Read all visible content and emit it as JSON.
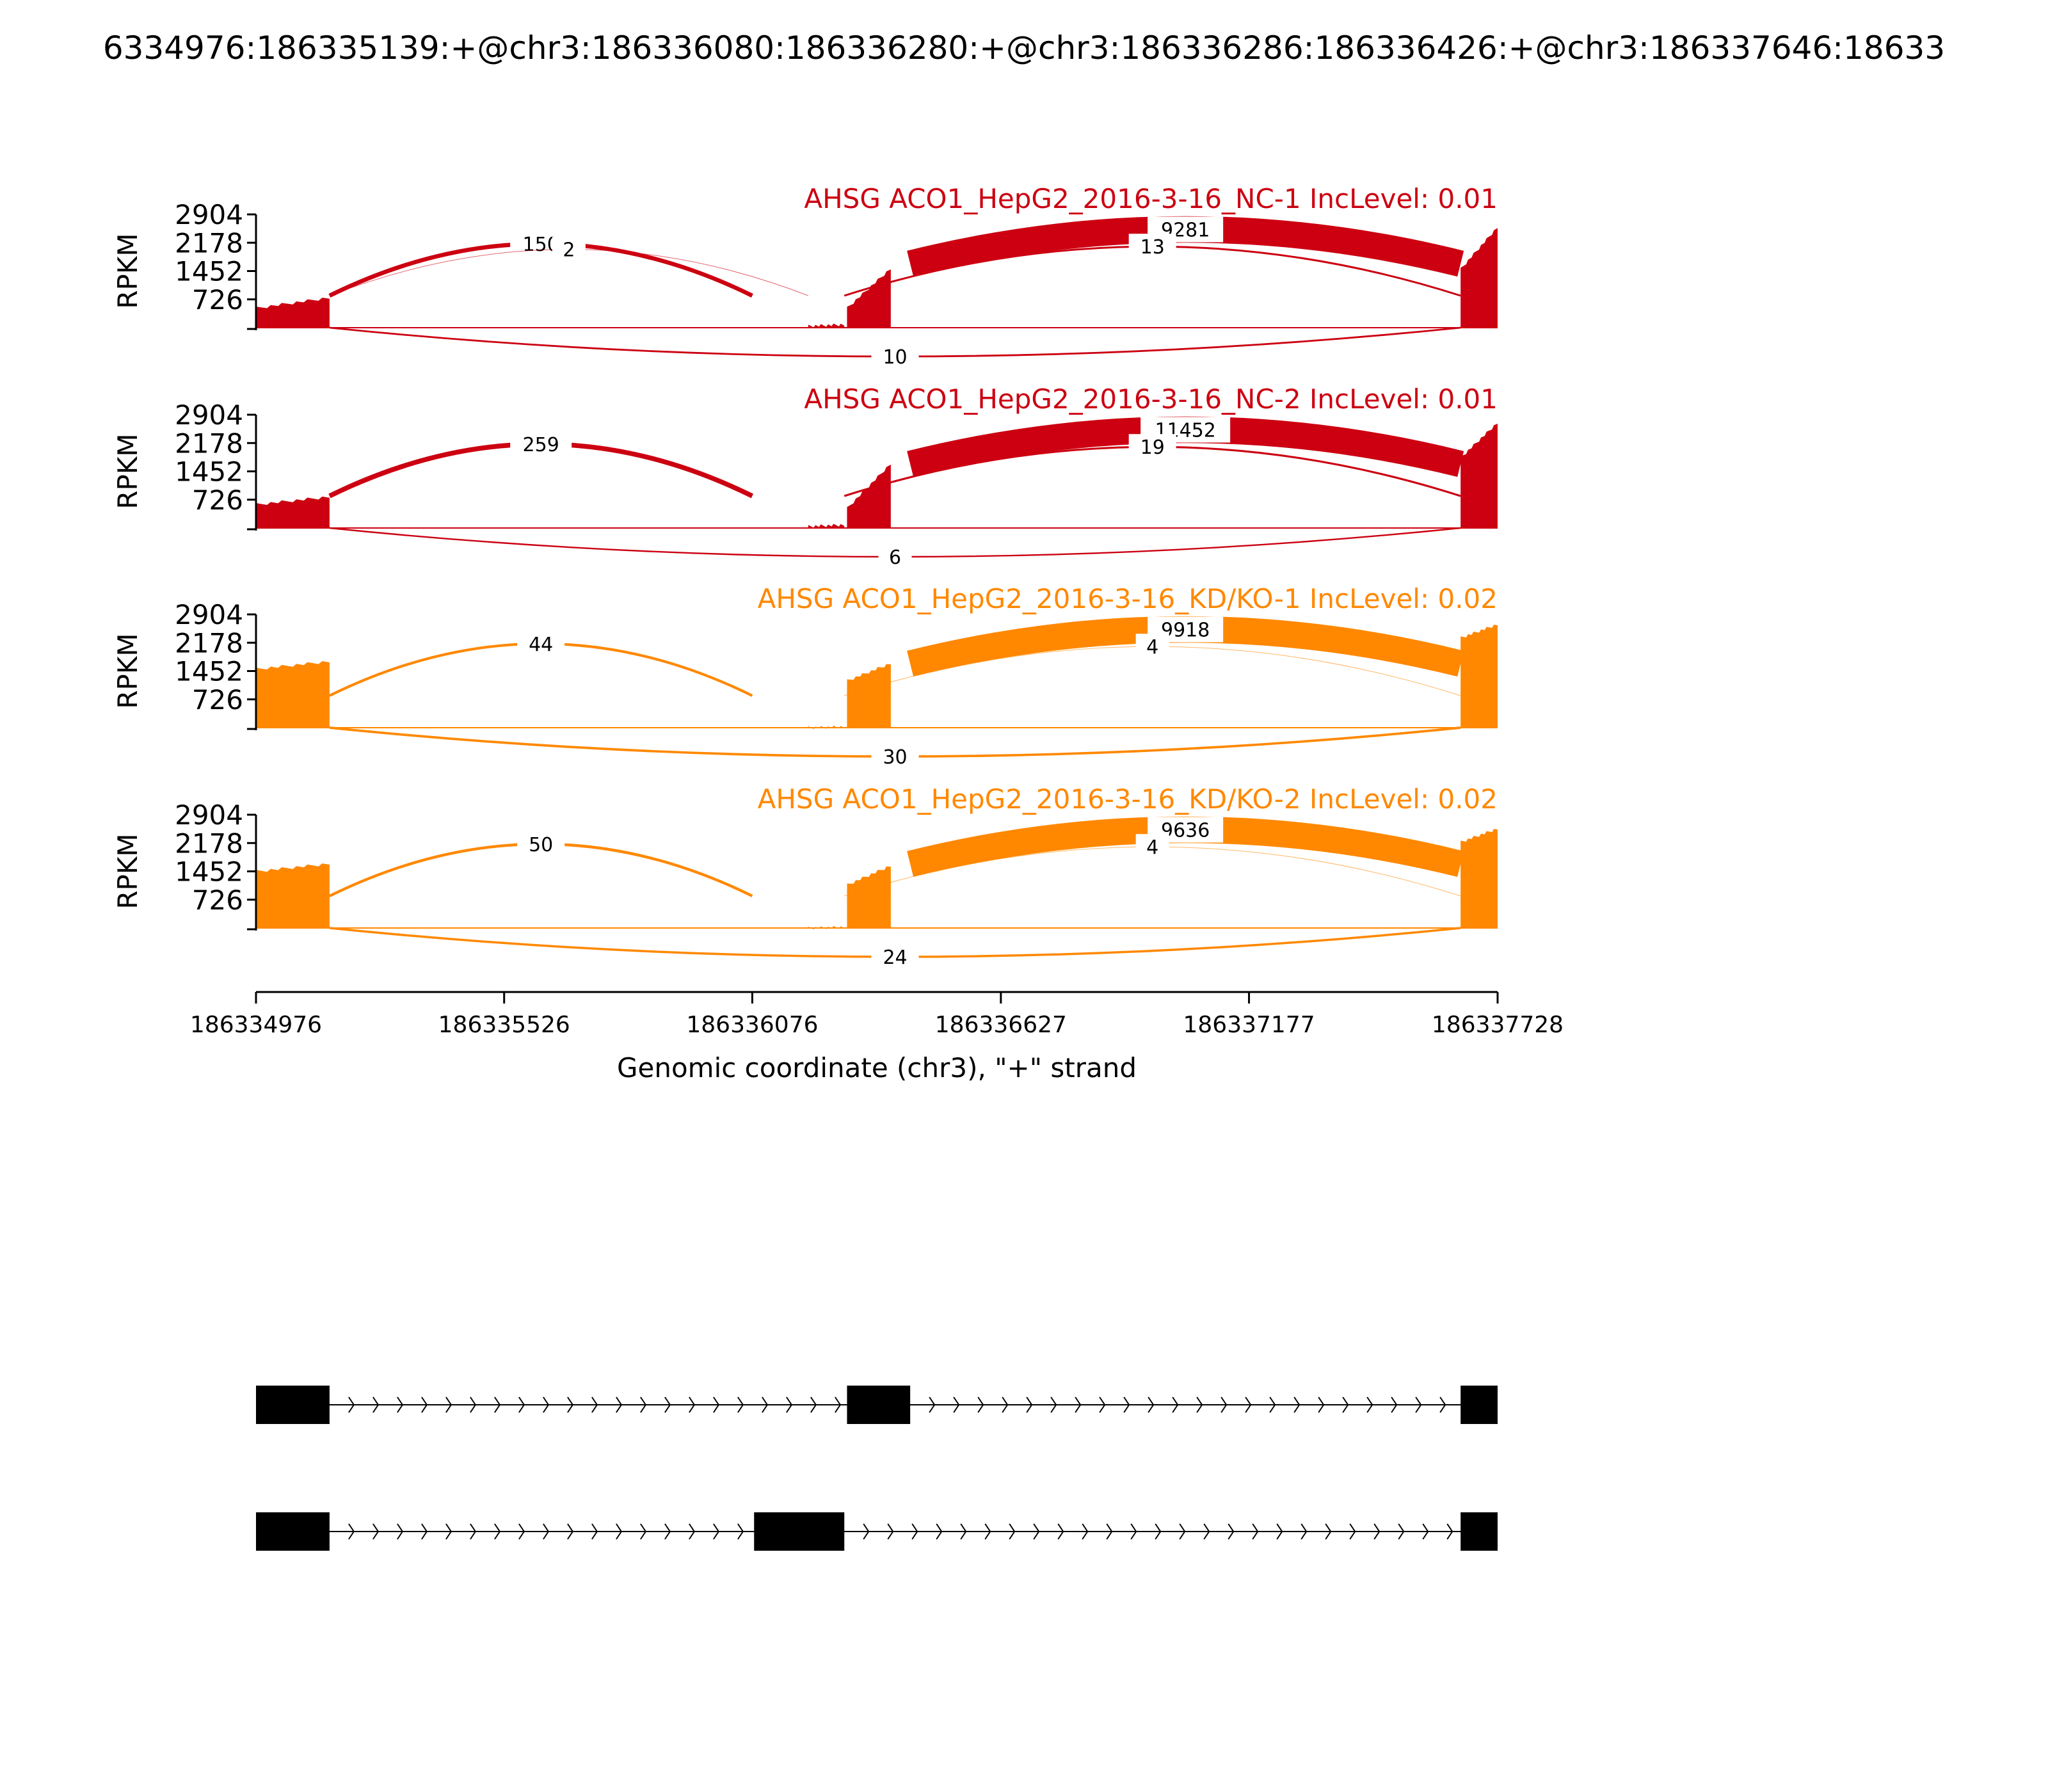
{
  "chart_data": {
    "type": "area",
    "title": "6334976:186335139:+@chr3:186336080:186336280:+@chr3:186336286:186336426:+@chr3:186337646:18633",
    "xlabel": "Genomic coordinate (chr3), \"+\" strand",
    "ylabel": "RPKM",
    "xlim": [
      186334976,
      186337728
    ],
    "ylim": [
      0,
      2904
    ],
    "xticks": [
      186334976,
      186335526,
      186336076,
      186336627,
      186337177,
      186337728
    ],
    "xtick_labels": [
      "186334976",
      "186335526",
      "186336076",
      "186336627",
      "186337177",
      "186337728"
    ],
    "yticks": [
      726,
      1452,
      2178,
      2904
    ],
    "ytick_labels": [
      "726",
      "1452",
      "2178",
      "2904"
    ],
    "exons": {
      "exon1": [
        186334976,
        186335139
      ],
      "exon_upstream_alt": [
        186336080,
        186336280
      ],
      "exon_mid": [
        186336286,
        186336426
      ],
      "exon_last": [
        186337646,
        186337728
      ]
    },
    "panels": [
      {
        "title": "AHSG ACO1_HepG2_2016-3-16_NC-1 IncLevel: 0.01",
        "color": "#cc0011",
        "coverage": [
          {
            "start": 186334976,
            "end": 186335139,
            "from": 500,
            "to": 770
          },
          {
            "start": 186336200,
            "end": 186336280,
            "from": 40,
            "to": 80
          },
          {
            "start": 186336286,
            "end": 186336383,
            "from": 500,
            "to": 1520
          },
          {
            "start": 186337646,
            "end": 186337728,
            "from": 1500,
            "to": 2580
          }
        ],
        "junctions": [
          {
            "label": "150",
            "from": 186335139,
            "to": 186336076,
            "count": 150,
            "side": "above",
            "height": 0.75
          },
          {
            "label": "2",
            "from": 186335139,
            "to": 186336200,
            "count": 2,
            "side": "above",
            "height": 0.65
          },
          {
            "label": "9281",
            "from": 186336426,
            "to": 186337646,
            "count": 9281,
            "side": "above",
            "height": 1.1
          },
          {
            "label": "13",
            "from": 186336280,
            "to": 186337646,
            "count": 13,
            "side": "above",
            "height": 0.7
          },
          {
            "label": "10",
            "from": 186335139,
            "to": 186337646,
            "count": 10,
            "side": "below",
            "height": 0.55
          }
        ]
      },
      {
        "title": "AHSG ACO1_HepG2_2016-3-16_NC-2 IncLevel: 0.01",
        "color": "#cc0011",
        "coverage": [
          {
            "start": 186334976,
            "end": 186335139,
            "from": 600,
            "to": 800
          },
          {
            "start": 186336200,
            "end": 186336280,
            "from": 40,
            "to": 80
          },
          {
            "start": 186336286,
            "end": 186336383,
            "from": 500,
            "to": 1650
          },
          {
            "start": 186337646,
            "end": 186337728,
            "from": 1800,
            "to": 2700
          }
        ],
        "junctions": [
          {
            "label": "259",
            "from": 186335139,
            "to": 186336076,
            "count": 259,
            "side": "above",
            "height": 0.75
          },
          {
            "label": "11452",
            "from": 186336426,
            "to": 186337646,
            "count": 11452,
            "side": "above",
            "height": 1.1
          },
          {
            "label": "19",
            "from": 186336280,
            "to": 186337646,
            "count": 19,
            "side": "above",
            "height": 0.7
          },
          {
            "label": "6",
            "from": 186335139,
            "to": 186337646,
            "count": 6,
            "side": "below",
            "height": 0.55
          }
        ]
      },
      {
        "title": "AHSG ACO1_HepG2_2016-3-16_KD/KO-1 IncLevel: 0.02",
        "color": "#ff8800",
        "coverage": [
          {
            "start": 186334976,
            "end": 186335139,
            "from": 1500,
            "to": 1700
          },
          {
            "start": 186336200,
            "end": 186336280,
            "from": 0,
            "to": 20
          },
          {
            "start": 186336286,
            "end": 186336383,
            "from": 1200,
            "to": 1650
          },
          {
            "start": 186337646,
            "end": 186337728,
            "from": 2300,
            "to": 2650
          }
        ],
        "junctions": [
          {
            "label": "44",
            "from": 186335139,
            "to": 186336076,
            "count": 44,
            "side": "above",
            "height": 0.75
          },
          {
            "label": "9918",
            "from": 186336426,
            "to": 186337646,
            "count": 9918,
            "side": "above",
            "height": 1.1
          },
          {
            "label": "4",
            "from": 186336280,
            "to": 186337646,
            "count": 4,
            "side": "above",
            "height": 0.7
          },
          {
            "label": "30",
            "from": 186335139,
            "to": 186337646,
            "count": 30,
            "side": "below",
            "height": 0.55
          }
        ]
      },
      {
        "title": "AHSG ACO1_HepG2_2016-3-16_KD/KO-2 IncLevel: 0.02",
        "color": "#ff8800",
        "coverage": [
          {
            "start": 186334976,
            "end": 186335139,
            "from": 1450,
            "to": 1650
          },
          {
            "start": 186336200,
            "end": 186336280,
            "from": 0,
            "to": 20
          },
          {
            "start": 186336286,
            "end": 186336383,
            "from": 1100,
            "to": 1600
          },
          {
            "start": 186337646,
            "end": 186337728,
            "from": 2200,
            "to": 2550
          }
        ],
        "junctions": [
          {
            "label": "50",
            "from": 186335139,
            "to": 186336076,
            "count": 50,
            "side": "above",
            "height": 0.75
          },
          {
            "label": "9636",
            "from": 186336426,
            "to": 186337646,
            "count": 9636,
            "side": "above",
            "height": 1.1
          },
          {
            "label": "4",
            "from": 186336280,
            "to": 186337646,
            "count": 4,
            "side": "above",
            "height": 0.7
          },
          {
            "label": "24",
            "from": 186335139,
            "to": 186337646,
            "count": 24,
            "side": "below",
            "height": 0.55
          }
        ]
      }
    ],
    "isoforms": [
      {
        "exons": [
          [
            186334976,
            186335139
          ],
          [
            186336286,
            186336426
          ],
          [
            186337646,
            186337728
          ]
        ]
      },
      {
        "exons": [
          [
            186334976,
            186335139
          ],
          [
            186336080,
            186336280
          ],
          [
            186337646,
            186337728
          ]
        ]
      }
    ]
  }
}
